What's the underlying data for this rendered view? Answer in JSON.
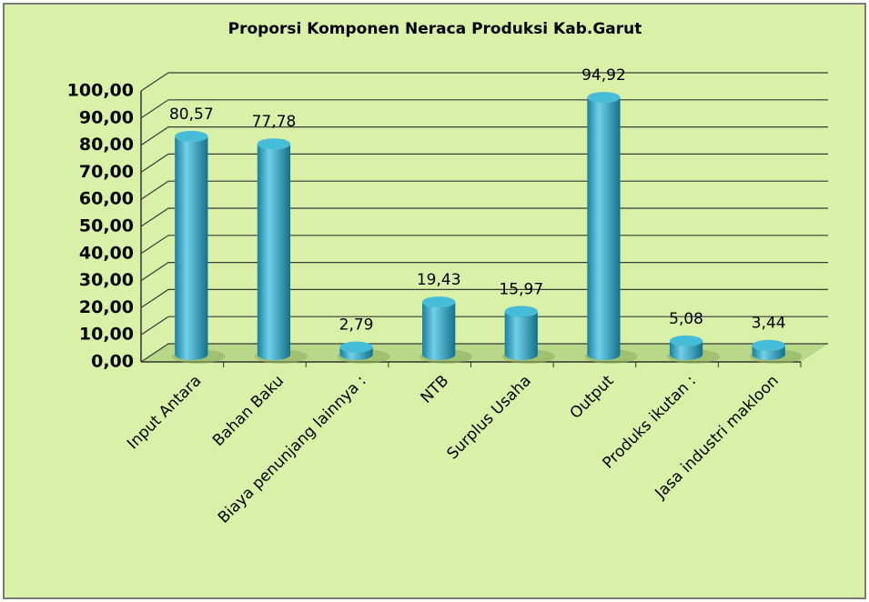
{
  "chart_data": {
    "type": "bar",
    "title": "Proporsi Komponen Neraca Produksi Kab.Garut",
    "categories": [
      "Input Antara",
      "Bahan Baku",
      "Biaya penunjang lainnya :",
      "NTB",
      "Surplus Usaha",
      "Output",
      "Produks ikutan :",
      "Jasa industri makloon"
    ],
    "values": [
      80.57,
      77.78,
      2.79,
      19.43,
      15.97,
      94.92,
      5.08,
      3.44
    ],
    "value_labels": [
      "80,57",
      "77,78",
      "2,79",
      "19,43",
      "15,97",
      "94,92",
      "5,08",
      "3,44"
    ],
    "color": "#2ba3c4",
    "ylim": [
      0,
      100
    ],
    "yticks": [
      {
        "value": 0,
        "label": "0,00"
      },
      {
        "value": 10,
        "label": "10,00"
      },
      {
        "value": 20,
        "label": "20,00"
      },
      {
        "value": 30,
        "label": "30,00"
      },
      {
        "value": 40,
        "label": "40,00"
      },
      {
        "value": 50,
        "label": "50,00"
      },
      {
        "value": 60,
        "label": "60,00"
      },
      {
        "value": 70,
        "label": "70,00"
      },
      {
        "value": 80,
        "label": "80,00"
      },
      {
        "value": 90,
        "label": "90,00"
      },
      {
        "value": 100,
        "label": "100,00"
      }
    ],
    "grid": true
  }
}
